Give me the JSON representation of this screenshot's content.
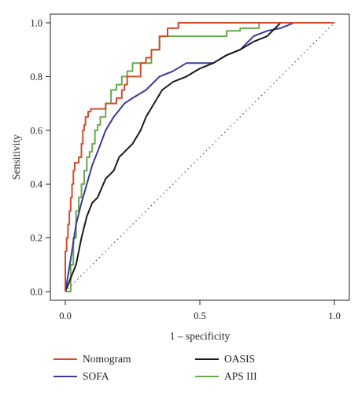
{
  "chart_data": {
    "type": "line",
    "title": "",
    "xlabel": "1 – specificity",
    "ylabel": "Sensitivity",
    "xlim": [
      0,
      1
    ],
    "ylim": [
      0,
      1
    ],
    "xticks": [
      "0.0",
      "0.5",
      "1.0"
    ],
    "yticks": [
      "0.0",
      "0.2",
      "0.4",
      "0.6",
      "0.8",
      "1.0"
    ],
    "grid": false,
    "reference_line": "diagonal dotted",
    "legend_position": "bottom",
    "series": [
      {
        "name": "Nomogram",
        "color": "#d44a2a",
        "step": true,
        "x": [
          0.0,
          0.0,
          0.005,
          0.01,
          0.015,
          0.02,
          0.025,
          0.03,
          0.035,
          0.05,
          0.06,
          0.065,
          0.07,
          0.075,
          0.085,
          0.095,
          0.1,
          0.13,
          0.15,
          0.19,
          0.21,
          0.22,
          0.23,
          0.25,
          0.28,
          0.3,
          0.32,
          0.35,
          0.38,
          0.4,
          0.42,
          0.55,
          0.7,
          0.75,
          1.0
        ],
        "y": [
          0.0,
          0.15,
          0.2,
          0.25,
          0.3,
          0.35,
          0.4,
          0.45,
          0.48,
          0.5,
          0.55,
          0.6,
          0.62,
          0.65,
          0.67,
          0.68,
          0.68,
          0.68,
          0.7,
          0.72,
          0.75,
          0.77,
          0.8,
          0.8,
          0.85,
          0.87,
          0.9,
          0.95,
          0.98,
          0.98,
          1.0,
          1.0,
          1.0,
          1.0,
          1.0
        ]
      },
      {
        "name": "SOFA",
        "color": "#3a3a9a",
        "step": false,
        "x": [
          0.0,
          0.02,
          0.04,
          0.06,
          0.08,
          0.1,
          0.12,
          0.15,
          0.18,
          0.22,
          0.25,
          0.3,
          0.35,
          0.4,
          0.45,
          0.5,
          0.55,
          0.6,
          0.65,
          0.7,
          0.75,
          0.8,
          0.85,
          1.0
        ],
        "y": [
          0.0,
          0.12,
          0.25,
          0.33,
          0.4,
          0.47,
          0.52,
          0.6,
          0.65,
          0.7,
          0.72,
          0.75,
          0.8,
          0.82,
          0.85,
          0.85,
          0.85,
          0.88,
          0.9,
          0.95,
          0.97,
          0.98,
          1.0,
          1.0
        ]
      },
      {
        "name": "OASIS",
        "color": "#1a1a1a",
        "step": false,
        "x": [
          0.0,
          0.02,
          0.04,
          0.06,
          0.08,
          0.1,
          0.12,
          0.15,
          0.18,
          0.2,
          0.22,
          0.25,
          0.28,
          0.3,
          0.33,
          0.36,
          0.4,
          0.45,
          0.5,
          0.55,
          0.6,
          0.65,
          0.7,
          0.75,
          0.8,
          1.0
        ],
        "y": [
          0.0,
          0.05,
          0.1,
          0.2,
          0.28,
          0.33,
          0.35,
          0.42,
          0.45,
          0.5,
          0.52,
          0.55,
          0.6,
          0.65,
          0.7,
          0.75,
          0.78,
          0.8,
          0.83,
          0.85,
          0.88,
          0.9,
          0.93,
          0.95,
          1.0,
          1.0
        ]
      },
      {
        "name": "APS III",
        "color": "#6aa84f",
        "step": true,
        "x": [
          0.0,
          0.02,
          0.03,
          0.04,
          0.05,
          0.06,
          0.07,
          0.08,
          0.09,
          0.1,
          0.11,
          0.12,
          0.13,
          0.15,
          0.17,
          0.19,
          0.21,
          0.23,
          0.25,
          0.3,
          0.32,
          0.35,
          0.45,
          0.5,
          0.55,
          0.6,
          0.65,
          0.72,
          0.75,
          1.0
        ],
        "y": [
          0.0,
          0.1,
          0.2,
          0.3,
          0.35,
          0.4,
          0.45,
          0.5,
          0.52,
          0.55,
          0.6,
          0.62,
          0.65,
          0.7,
          0.75,
          0.77,
          0.8,
          0.82,
          0.85,
          0.85,
          0.9,
          0.95,
          0.95,
          0.95,
          0.95,
          0.97,
          0.98,
          1.0,
          1.0,
          1.0
        ]
      }
    ]
  }
}
